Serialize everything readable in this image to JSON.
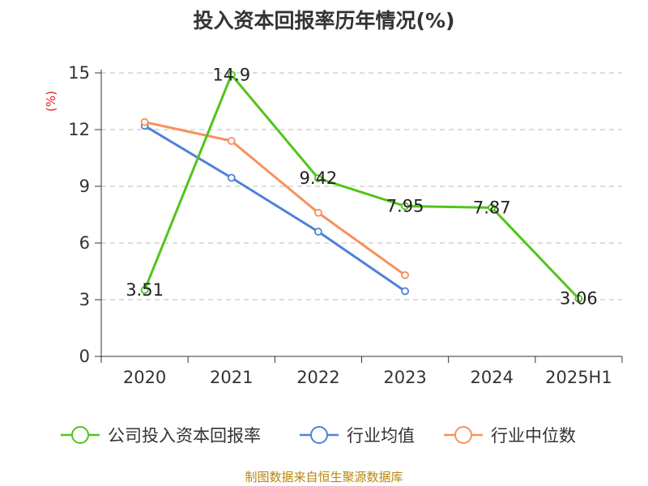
{
  "title": "投入资本回报率历年情况(%)",
  "footer": "制图数据来自恒生聚源数据库",
  "chart_data": {
    "type": "line",
    "title": "投入资本回报率历年情况(%)",
    "ylabel": "(%)",
    "xlabel": "",
    "categories": [
      "2020",
      "2021",
      "2022",
      "2023",
      "2024",
      "2025H1"
    ],
    "ylim": [
      0,
      15
    ],
    "yticks": [
      0,
      3,
      6,
      9,
      12,
      15
    ],
    "grid": true,
    "legend_position": "bottom",
    "series": [
      {
        "name": "公司投入资本回报率",
        "color": "#52c41a",
        "values": [
          3.51,
          14.9,
          9.42,
          7.95,
          7.87,
          3.06
        ],
        "show_labels": true
      },
      {
        "name": "行业均值",
        "color": "#4f81d9",
        "values": [
          12.2,
          9.45,
          6.6,
          3.45,
          null,
          null
        ],
        "show_labels": false
      },
      {
        "name": "行业中位数",
        "color": "#f98f5a",
        "values": [
          12.4,
          11.4,
          7.6,
          4.3,
          null,
          null
        ],
        "show_labels": false
      }
    ]
  }
}
